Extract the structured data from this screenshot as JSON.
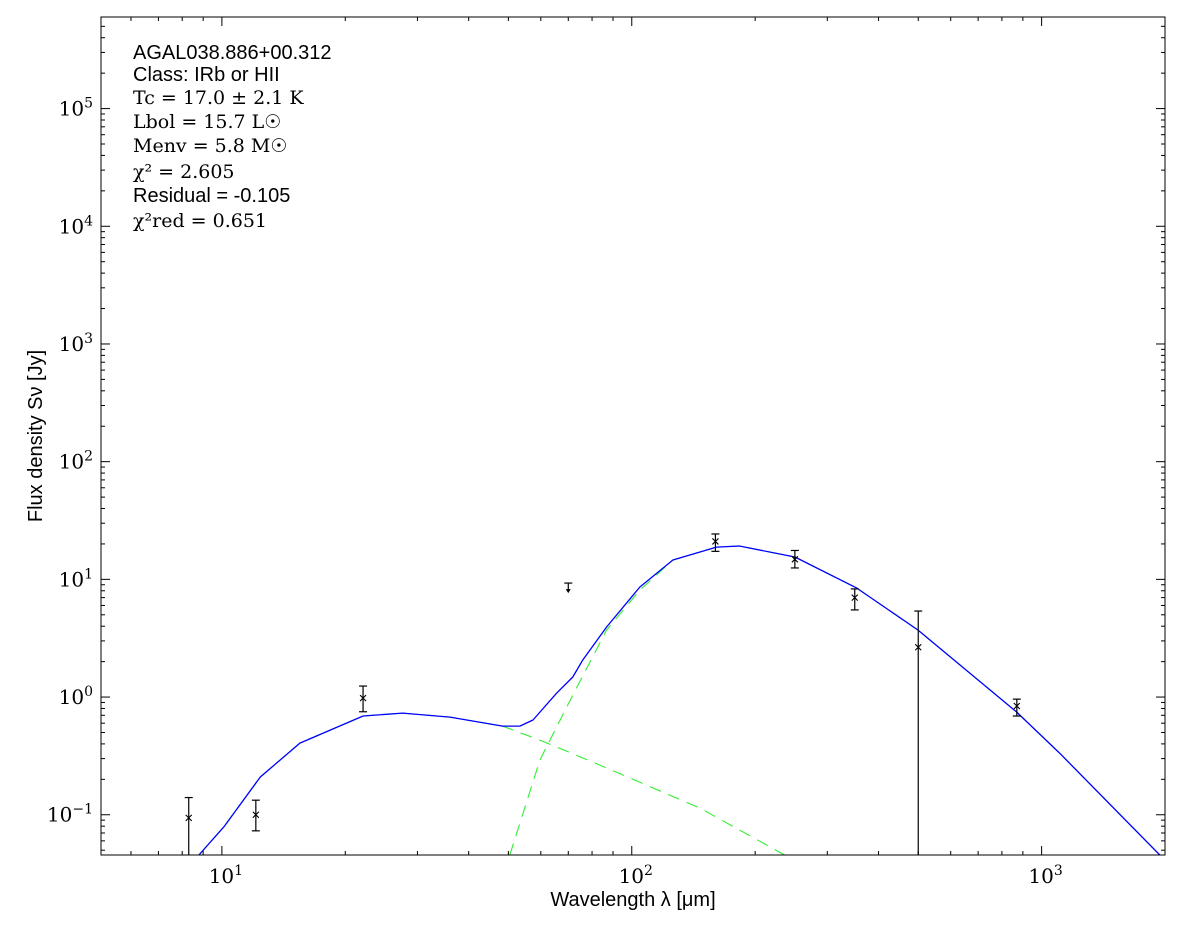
{
  "chart_data": {
    "type": "scatter",
    "title": "",
    "xlabel": "Wavelength λ [μm]",
    "ylabel": "Flux density Sν [Jy]",
    "xscale": "log",
    "yscale": "log",
    "xlim": [
      5.07,
      2000
    ],
    "ylim": [
      0.0455,
      600000
    ],
    "grid": false,
    "xticks": [
      {
        "value": 10,
        "label": "10",
        "exp": "1"
      },
      {
        "value": 100,
        "label": "10",
        "exp": "2"
      },
      {
        "value": 1000,
        "label": "10",
        "exp": "3"
      }
    ],
    "yticks": [
      {
        "value": 0.1,
        "label": "10",
        "exp": "−1"
      },
      {
        "value": 1,
        "label": "10",
        "exp": "0"
      },
      {
        "value": 10,
        "label": "10",
        "exp": "1"
      },
      {
        "value": 100,
        "label": "10",
        "exp": "2"
      },
      {
        "value": 1000,
        "label": "10",
        "exp": "3"
      },
      {
        "value": 10000,
        "label": "10",
        "exp": "4"
      },
      {
        "value": 100000,
        "label": "10",
        "exp": "5"
      }
    ],
    "annotation": [
      {
        "text": "AGAL038.886+00.312",
        "style": "sans"
      },
      {
        "text": "Class: IRb or HII",
        "style": "sans"
      },
      {
        "text": "Tc = 17.0 ± 2.1 K",
        "style": "math"
      },
      {
        "text": "Lbol = 15.7 L☉",
        "style": "math"
      },
      {
        "text": "Menv = 5.8 M☉",
        "style": "math"
      },
      {
        "text": "χ² = 2.605",
        "style": "math"
      },
      {
        "text": "Residual = -0.105",
        "style": "sans"
      },
      {
        "text": "χ²red = 0.651",
        "style": "math"
      }
    ],
    "colors": {
      "total": "#0000ff",
      "components": "#33ee33",
      "points": "#000000"
    },
    "points": [
      {
        "x": 8.3,
        "y": 0.094,
        "ylo": 0.0455,
        "yhi": 0.14
      },
      {
        "x": 12.1,
        "y": 0.1,
        "ylo": 0.073,
        "yhi": 0.133
      },
      {
        "x": 22.1,
        "y": 0.98,
        "ylo": 0.75,
        "yhi": 1.24
      },
      {
        "x": 70,
        "y": 9.3,
        "upper_limit": true
      },
      {
        "x": 160,
        "y": 21,
        "ylo": 17.3,
        "yhi": 24.3
      },
      {
        "x": 250,
        "y": 14.8,
        "ylo": 12.5,
        "yhi": 17.6
      },
      {
        "x": 350,
        "y": 7.0,
        "ylo": 5.5,
        "yhi": 8.3
      },
      {
        "x": 500,
        "y": 2.65,
        "ylo": 0.0455,
        "yhi": 5.38
      },
      {
        "x": 870,
        "y": 0.84,
        "ylo": 0.69,
        "yhi": 0.96
      }
    ],
    "series": [
      {
        "style": "total",
        "points": [
          [
            8.79,
            0.0455
          ],
          [
            10.1,
            0.0785
          ],
          [
            12.4,
            0.209
          ],
          [
            15.5,
            0.406
          ],
          [
            22.1,
            0.69
          ],
          [
            27.6,
            0.731
          ],
          [
            36,
            0.676
          ],
          [
            48.4,
            0.567
          ],
          [
            53.3,
            0.567
          ],
          [
            57.4,
            0.638
          ],
          [
            65.6,
            1.08
          ],
          [
            71.8,
            1.48
          ],
          [
            75.9,
            2.06
          ],
          [
            86.8,
            3.94
          ],
          [
            104.7,
            8.61
          ],
          [
            126,
            14.6
          ],
          [
            161,
            18.8
          ],
          [
            183,
            19.2
          ],
          [
            250,
            15.5
          ],
          [
            354,
            8.43
          ],
          [
            499,
            3.71
          ],
          [
            869,
            0.746
          ],
          [
            1106,
            0.334
          ],
          [
            1942,
            0.0455
          ]
        ]
      },
      {
        "style": "warm-component",
        "points": [
          [
            8.79,
            0.0455
          ],
          [
            10.1,
            0.0785
          ],
          [
            12.4,
            0.209
          ],
          [
            15.5,
            0.406
          ],
          [
            22.1,
            0.69
          ],
          [
            27.6,
            0.731
          ],
          [
            36,
            0.676
          ],
          [
            48.4,
            0.567
          ],
          [
            59.7,
            0.431
          ],
          [
            83.6,
            0.264
          ],
          [
            146.6,
            0.114
          ],
          [
            236,
            0.0455
          ]
        ]
      },
      {
        "style": "cold-component",
        "points": [
          [
            50.4,
            0.0455
          ],
          [
            59.7,
            0.292
          ],
          [
            71.8,
            1.04
          ],
          [
            86.8,
            3.71
          ],
          [
            104.7,
            8.1
          ],
          [
            126,
            14.6
          ],
          [
            161,
            18.8
          ],
          [
            183,
            19.2
          ],
          [
            250,
            15.5
          ],
          [
            354,
            8.43
          ],
          [
            499,
            3.71
          ],
          [
            869,
            0.746
          ],
          [
            1106,
            0.334
          ],
          [
            1942,
            0.0455
          ]
        ]
      }
    ]
  }
}
